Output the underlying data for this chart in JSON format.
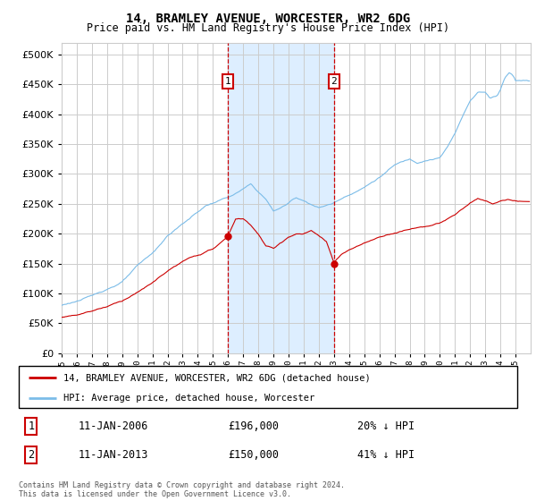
{
  "title": "14, BRAMLEY AVENUE, WORCESTER, WR2 6DG",
  "subtitle": "Price paid vs. HM Land Registry's House Price Index (HPI)",
  "sale1_price": 196000,
  "sale1_date_str": "11-JAN-2006",
  "sale1_hpi_pct": "20% ↓ HPI",
  "sale2_price": 150000,
  "sale2_date_str": "11-JAN-2013",
  "sale2_hpi_pct": "41% ↓ HPI",
  "hpi_color": "#7bbce8",
  "price_color": "#cc0000",
  "shade_color": "#ddeeff",
  "grid_color": "#cccccc",
  "background_color": "#ffffff",
  "ylim": [
    0,
    520000
  ],
  "yticks": [
    0,
    50000,
    100000,
    150000,
    200000,
    250000,
    300000,
    350000,
    400000,
    450000,
    500000
  ],
  "legend_line1": "14, BRAMLEY AVENUE, WORCESTER, WR2 6DG (detached house)",
  "legend_line2": "HPI: Average price, detached house, Worcester",
  "footer": "Contains HM Land Registry data © Crown copyright and database right 2024.\nThis data is licensed under the Open Government Licence v3.0."
}
